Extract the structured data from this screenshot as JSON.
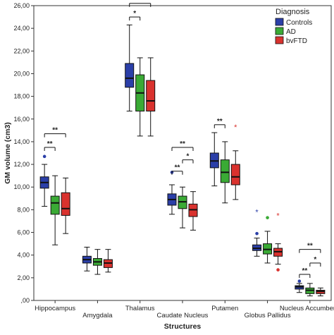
{
  "chart_data": {
    "type": "boxplot",
    "xlabel": "Structures",
    "ylabel": "GM volume (cm3)",
    "ylim": [
      0,
      26
    ],
    "yticks": [
      "26,00",
      "24,00",
      "22,00",
      "20,00",
      "18,00",
      "16,00",
      "14,00",
      "12,00",
      "10,00",
      "8,00",
      "6,00",
      "4,00",
      "2,00",
      ",00"
    ],
    "ytick_values": [
      26,
      24,
      22,
      20,
      18,
      16,
      14,
      12,
      10,
      8,
      6,
      4,
      2,
      0
    ],
    "categories": [
      "Hippocampus",
      "Amygdala",
      "Thalamus",
      "Caudate Nucleus",
      "Putamen",
      "Globus Pallidus",
      "Nucleus Accumbens"
    ],
    "legend": {
      "title": "Diagnosis",
      "position": "top-right"
    },
    "grid": false,
    "series": [
      {
        "name": "Controls",
        "color": "#2b3fa8",
        "boxes": [
          {
            "min": 8.3,
            "q1": 9.9,
            "median": 10.4,
            "q3": 10.9,
            "max": 12.0,
            "outliers": [
              12.7
            ]
          },
          {
            "min": 2.6,
            "q1": 3.3,
            "median": 3.6,
            "q3": 3.9,
            "max": 4.7,
            "outliers": []
          },
          {
            "min": 16.7,
            "q1": 18.8,
            "median": 19.6,
            "q3": 20.9,
            "max": 24.3,
            "outliers": []
          },
          {
            "min": 7.6,
            "q1": 8.4,
            "median": 8.9,
            "q3": 9.4,
            "max": 10.2,
            "outliers": [
              11.3
            ]
          },
          {
            "min": 10.1,
            "q1": 11.7,
            "median": 12.3,
            "q3": 13.0,
            "max": 14.8,
            "outliers": []
          },
          {
            "min": 3.9,
            "q1": 4.4,
            "median": 4.6,
            "q3": 4.9,
            "max": 5.5,
            "outliers": [
              5.9,
              7.8
            ]
          },
          {
            "min": 0.7,
            "q1": 1.0,
            "median": 1.2,
            "q3": 1.3,
            "max": 1.5,
            "outliers": [
              1.7
            ]
          }
        ]
      },
      {
        "name": "AD",
        "color": "#3aaa35",
        "boxes": [
          {
            "min": 4.9,
            "q1": 7.6,
            "median": 8.6,
            "q3": 9.2,
            "max": 11.0,
            "outliers": []
          },
          {
            "min": 2.3,
            "q1": 3.1,
            "median": 3.4,
            "q3": 3.7,
            "max": 4.5,
            "outliers": []
          },
          {
            "min": 14.5,
            "q1": 16.7,
            "median": 18.3,
            "q3": 19.9,
            "max": 21.4,
            "outliers": []
          },
          {
            "min": 6.4,
            "q1": 8.1,
            "median": 8.7,
            "q3": 9.2,
            "max": 10.0,
            "outliers": []
          },
          {
            "min": 8.6,
            "q1": 10.4,
            "median": 11.3,
            "q3": 12.4,
            "max": 14.0,
            "outliers": []
          },
          {
            "min": 3.3,
            "q1": 4.1,
            "median": 4.5,
            "q3": 5.0,
            "max": 6.1,
            "outliers": [
              7.3
            ]
          },
          {
            "min": 0.4,
            "q1": 0.6,
            "median": 0.9,
            "q3": 1.1,
            "max": 1.5,
            "outliers": []
          }
        ]
      },
      {
        "name": "bvFTD",
        "color": "#d9322e",
        "boxes": [
          {
            "min": 5.9,
            "q1": 7.5,
            "median": 8.1,
            "q3": 9.5,
            "max": 10.8,
            "outliers": []
          },
          {
            "min": 2.5,
            "q1": 2.9,
            "median": 3.3,
            "q3": 3.6,
            "max": 4.5,
            "outliers": []
          },
          {
            "min": 14.5,
            "q1": 16.7,
            "median": 17.6,
            "q3": 19.4,
            "max": 21.4,
            "outliers": []
          },
          {
            "min": 6.2,
            "q1": 7.4,
            "median": 8.0,
            "q3": 8.5,
            "max": 9.6,
            "outliers": []
          },
          {
            "min": 8.9,
            "q1": 10.2,
            "median": 10.9,
            "q3": 12.0,
            "max": 13.2,
            "outliers": [
              15.3
            ]
          },
          {
            "min": 3.2,
            "q1": 3.9,
            "median": 4.3,
            "q3": 4.6,
            "max": 5.0,
            "outliers": [
              2.7,
              7.5
            ]
          },
          {
            "min": 0.4,
            "q1": 0.6,
            "median": 0.8,
            "q3": 0.9,
            "max": 1.1,
            "outliers": []
          }
        ]
      }
    ],
    "annotations": [
      {
        "label": "**",
        "category": 0,
        "from": 0,
        "to": 2,
        "y": 14.7
      },
      {
        "label": "**",
        "category": 0,
        "from": 0,
        "to": 1,
        "y": 13.5
      },
      {
        "label": "**",
        "category": 2,
        "from": 0,
        "to": 2,
        "y": 26.2
      },
      {
        "label": "*",
        "category": 2,
        "from": 0,
        "to": 1,
        "y": 25.0
      },
      {
        "label": "**",
        "category": 3,
        "from": 0,
        "to": 2,
        "y": 13.5
      },
      {
        "label": "*",
        "category": 3,
        "from": 1,
        "to": 2,
        "y": 12.4
      },
      {
        "label": "**",
        "category": 3,
        "from": 0,
        "to": 1,
        "y": 11.4
      },
      {
        "label": "**",
        "category": 4,
        "from": 0,
        "to": 1,
        "y": 15.5
      },
      {
        "label": "**",
        "category": 6,
        "from": 0,
        "to": 2,
        "y": 4.5
      },
      {
        "label": "*",
        "category": 6,
        "from": 1,
        "to": 2,
        "y": 3.3
      },
      {
        "label": "**",
        "category": 6,
        "from": 0,
        "to": 1,
        "y": 2.3
      }
    ]
  }
}
